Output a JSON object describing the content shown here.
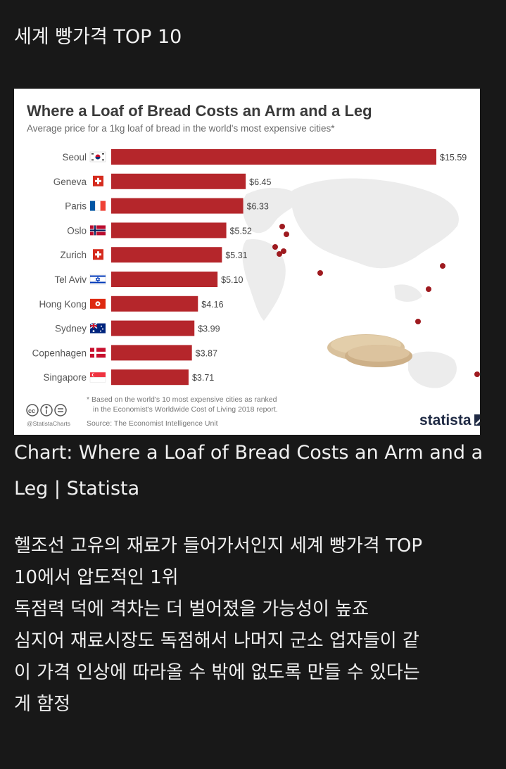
{
  "post": {
    "title": "세계 빵가격 TOP 10",
    "caption": "Chart: Where a Loaf of Bread Costs an Arm and a Leg | Statista",
    "body_lines": [
      "헬조선 고유의 재료가 들어가서인지 세계 빵가격 TOP",
      "10에서 압도적인 1위",
      "독점력 덕에 격차는 더 벌어졌을 가능성이 높죠",
      "심지어 재료시장도 독점해서 나머지 군소 업자들이 같",
      "이 가격 인상에 따라올 수 밖에 없도록 만들 수 있다는",
      "게 함정"
    ]
  },
  "chart_data": {
    "type": "bar",
    "orientation": "horizontal",
    "title": "Where a Loaf of Bread Costs an Arm and a Leg",
    "subtitle": "Average price for a 1kg loaf of bread in the world's most expensive cities*",
    "categories": [
      "Seoul",
      "Geneva",
      "Paris",
      "Oslo",
      "Zurich",
      "Tel Aviv",
      "Hong Kong",
      "Sydney",
      "Copenhagen",
      "Singapore"
    ],
    "values": [
      15.59,
      6.45,
      6.33,
      5.52,
      5.31,
      5.1,
      4.16,
      3.99,
      3.87,
      3.71
    ],
    "value_labels": [
      "$15.59",
      "$6.45",
      "$6.33",
      "$5.52",
      "$5.31",
      "$5.10",
      "$4.16",
      "$3.99",
      "$3.87",
      "$3.71"
    ],
    "flags": [
      "korea-flag-icon",
      "switzerland-flag-icon",
      "france-flag-icon",
      "norway-flag-icon",
      "switzerland-flag-icon",
      "israel-flag-icon",
      "hong-kong-flag-icon",
      "australia-flag-icon",
      "denmark-flag-icon",
      "singapore-flag-icon"
    ],
    "xlim": [
      0,
      15.59
    ],
    "grid": false,
    "bar_color": "#b5262b",
    "footnote": [
      "* Based on the world's 10 most expensive cities as ranked",
      "in the Economist's Worldwide Cost of Living 2018 report."
    ],
    "source": "Source: The Economist Intelligence Unit",
    "credit": "@StatistaCharts",
    "brand": "statista"
  }
}
